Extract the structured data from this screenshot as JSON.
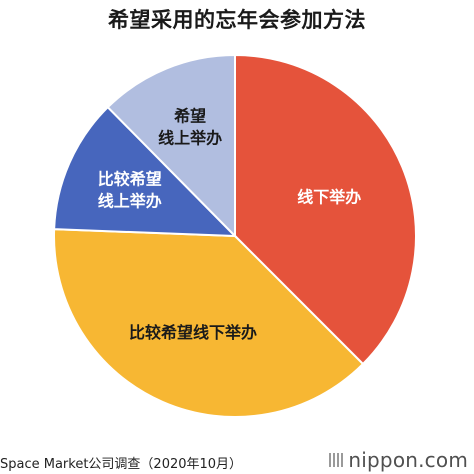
{
  "chart_data": {
    "type": "pie",
    "title": "希望采用的忘年会参加方法",
    "start_angle_deg": 0,
    "direction": "clockwise",
    "slices": [
      {
        "label": [
          "线下举办"
        ],
        "value": 37.5,
        "color": "#E5533B",
        "label_color": "#ffffff"
      },
      {
        "label": [
          "比较希望线下举办"
        ],
        "value": 38.1,
        "color": "#F7B733",
        "label_color": "#1a1a1a"
      },
      {
        "label": [
          "比较希望",
          "线上举办"
        ],
        "value": 12.0,
        "color": "#4766BD",
        "label_color": "#ffffff"
      },
      {
        "label": [
          "希望",
          "线上举办"
        ],
        "value": 12.4,
        "color": "#B1BEE0",
        "label_color": "#1a1a1a"
      }
    ]
  },
  "source": "Space Market公司调查（2020年10月）",
  "logo_text": "nippon.com"
}
